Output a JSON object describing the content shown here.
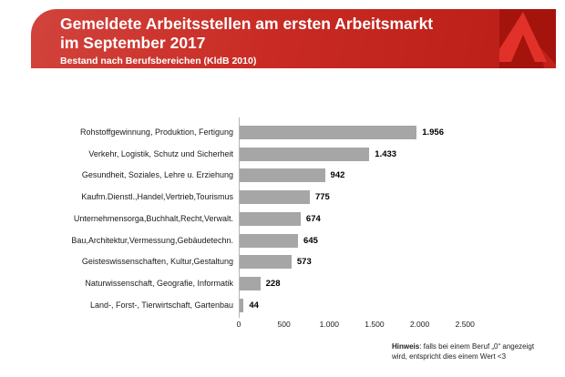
{
  "header": {
    "title_line1": "Gemeldete Arbeitsstellen am ersten Arbeitsmarkt",
    "title_line2": "im September 2017",
    "subtitle": "Bestand nach Berufsbereichen (KldB 2010)",
    "logo_icon": "bundesagentur-fuer-arbeit-a-logo",
    "colors": {
      "banner_red_light": "#d1433c",
      "banner_red_dark": "#b91d16",
      "logo_background": "#a5130d",
      "logo_a_red": "#e13129"
    }
  },
  "chart_data": {
    "type": "bar",
    "orientation": "horizontal",
    "title": "Gemeldete Arbeitsstellen am ersten Arbeitsmarkt im September 2017",
    "subtitle": "Bestand nach Berufsbereichen (KldB 2010)",
    "categories": [
      "Rohstoffgewinnung, Produktion, Fertigung",
      "Verkehr, Logistik, Schutz und Sicherheit",
      "Gesundheit, Soziales, Lehre u. Erziehung",
      "Kaufm.Dienstl.,Handel,Vertrieb,Tourismus",
      "Unternehmensorga,Buchhalt,Recht,Verwalt.",
      "Bau,Architektur,Vermessung,Gebäudetechn.",
      "Geisteswissenschaften, Kultur,Gestaltung",
      "Naturwissenschaft, Geografie, Informatik",
      "Land-, Forst-, Tierwirtschaft, Gartenbau"
    ],
    "values": [
      1956,
      1433,
      942,
      775,
      674,
      645,
      573,
      228,
      44
    ],
    "value_labels": [
      "1.956",
      "1.433",
      "942",
      "775",
      "674",
      "645",
      "573",
      "228",
      "44"
    ],
    "x_ticks": [
      "0",
      "500",
      "1.000",
      "1.500",
      "2.000",
      "2.500"
    ],
    "x_tick_values": [
      0,
      500,
      1000,
      1500,
      2000,
      2500
    ],
    "xlim": [
      0,
      2500
    ],
    "xlabel": "",
    "ylabel": "",
    "grid": false,
    "legend_position": "none",
    "bar_color": "#a6a6a6",
    "axis_color": "#b5b5b5"
  },
  "footnote": {
    "label": "Hinweis",
    "text": ": falls bei einem Beruf „0“ angezeigt wird, entspricht dies einem Wert <3"
  }
}
